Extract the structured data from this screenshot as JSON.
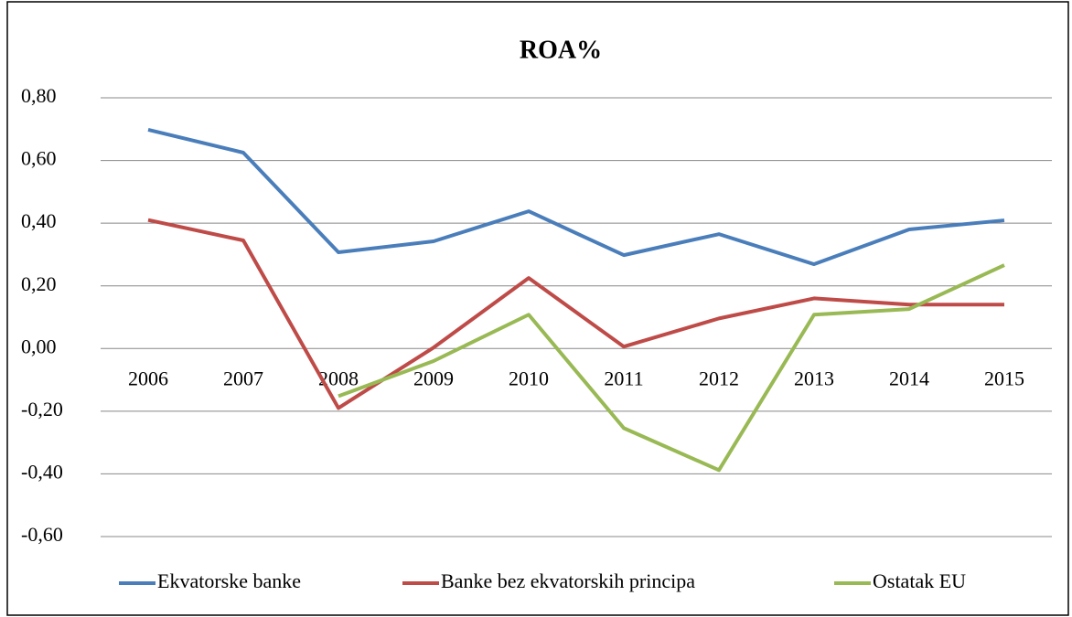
{
  "chart_data": {
    "type": "line",
    "title": "ROA%",
    "categories": [
      "2006",
      "2007",
      "2008",
      "2009",
      "2010",
      "2011",
      "2012",
      "2013",
      "2014",
      "2015"
    ],
    "series": [
      {
        "name": "Ekvatorske banke",
        "color": "#4a7ebb",
        "values": [
          0.698,
          0.625,
          0.307,
          0.342,
          0.438,
          0.298,
          0.365,
          0.269,
          0.38,
          0.409
        ]
      },
      {
        "name": "Banke bez ekvatorskih principa",
        "color": "#be4b48",
        "values": [
          0.41,
          0.345,
          -0.19,
          0.003,
          0.225,
          0.006,
          0.096,
          0.16,
          0.14,
          0.14
        ]
      },
      {
        "name": "Ostatak EU",
        "color": "#98b954",
        "values": [
          null,
          null,
          -0.152,
          -0.04,
          0.108,
          -0.254,
          -0.388,
          0.108,
          0.126,
          0.266
        ]
      }
    ],
    "ylim": [
      -0.6,
      0.8
    ],
    "yticks": [
      {
        "value": -0.6,
        "label": "-0,60"
      },
      {
        "value": -0.4,
        "label": "-0,40"
      },
      {
        "value": -0.2,
        "label": "-0,20"
      },
      {
        "value": 0,
        "label": "0,00"
      },
      {
        "value": 0.2,
        "label": "0,20"
      },
      {
        "value": 0.4,
        "label": "0,40"
      },
      {
        "value": 0.6,
        "label": "0,60"
      },
      {
        "value": 0.8,
        "label": "0,80"
      }
    ],
    "grid": true,
    "legend": "bottom"
  }
}
